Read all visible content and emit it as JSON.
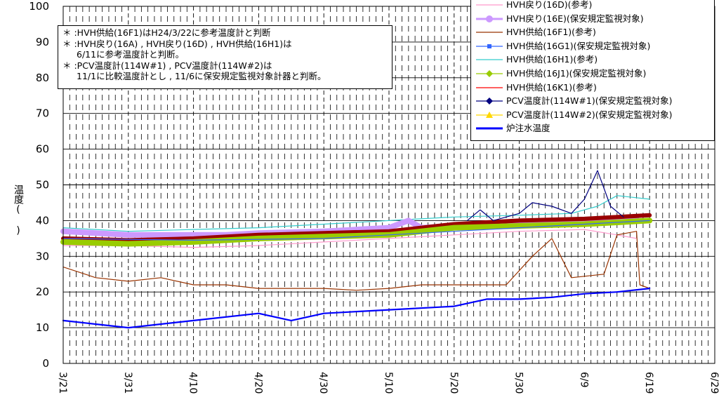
{
  "chart_data": {
    "type": "line",
    "ylabel": "温度(　)",
    "ylim": [
      0,
      100
    ],
    "y_ticks": [
      "0",
      "10",
      "20",
      "30",
      "40",
      "50",
      "60",
      "70",
      "80",
      "90",
      "100"
    ],
    "x_tick_labels": [
      "3/21",
      "3/31",
      "4/10",
      "4/20",
      "4/30",
      "5/10",
      "5/20",
      "5/30",
      "6/9",
      "6/19",
      "6/29"
    ],
    "xlim": [
      "3/21",
      "6/29"
    ],
    "grid": "dashed vertical daily, horizontal every 10",
    "legend_position": "top-right",
    "series": [
      {
        "name": "HVH戻り(16D)(参考)",
        "color": "#FF99CC",
        "points": [
          [
            0,
            33
          ],
          [
            10,
            33
          ],
          [
            20,
            32.5
          ],
          [
            30,
            33
          ],
          [
            40,
            34
          ],
          [
            50,
            35
          ],
          [
            60,
            36
          ],
          [
            70,
            37
          ],
          [
            80,
            37.5
          ],
          [
            85,
            36
          ],
          [
            88,
            35
          ]
        ]
      },
      {
        "name": "HVH戻り(16E)(保安規定監視対象)",
        "color": "#CC99FF",
        "points": [
          [
            0,
            37
          ],
          [
            10,
            36
          ],
          [
            20,
            36
          ],
          [
            25,
            36
          ],
          [
            30,
            36.5
          ],
          [
            40,
            37
          ],
          [
            50,
            38
          ],
          [
            53,
            40
          ],
          [
            55,
            38
          ],
          [
            60,
            38.5
          ],
          [
            70,
            39
          ],
          [
            80,
            40
          ],
          [
            88,
            41
          ]
        ]
      },
      {
        "name": "HVH供給(16F1)(参考)",
        "color": "#993300",
        "points": [
          [
            0,
            27
          ],
          [
            5,
            24
          ],
          [
            10,
            23
          ],
          [
            15,
            24
          ],
          [
            20,
            22
          ],
          [
            25,
            22
          ],
          [
            30,
            21
          ],
          [
            40,
            21
          ],
          [
            45,
            20.5
          ],
          [
            50,
            21
          ],
          [
            55,
            22
          ],
          [
            60,
            22
          ],
          [
            68,
            22
          ],
          [
            72,
            30
          ],
          [
            75,
            35
          ],
          [
            78,
            24
          ],
          [
            83,
            25
          ],
          [
            85,
            36
          ],
          [
            88,
            37
          ],
          [
            88.5,
            22
          ],
          [
            90,
            21
          ]
        ]
      },
      {
        "name": "HVH供給(16G1)(保安規定監視対象)",
        "color": "#3366FF",
        "points": [
          [
            0,
            35
          ],
          [
            20,
            34.5
          ],
          [
            40,
            35
          ],
          [
            60,
            37
          ],
          [
            70,
            38
          ],
          [
            80,
            39
          ],
          [
            90,
            40
          ]
        ]
      },
      {
        "name": "HVH供給(16H1)(参考)",
        "color": "#33CCCC",
        "points": [
          [
            0,
            38
          ],
          [
            10,
            37
          ],
          [
            20,
            37.5
          ],
          [
            30,
            38
          ],
          [
            40,
            39
          ],
          [
            50,
            40
          ],
          [
            60,
            41
          ],
          [
            70,
            41.5
          ],
          [
            78,
            42
          ],
          [
            82,
            44
          ],
          [
            85,
            47
          ],
          [
            90,
            46
          ]
        ]
      },
      {
        "name": "HVH供給(16J1)(保安規定監視対象)",
        "color": "#99CC00",
        "points": [
          [
            0,
            34
          ],
          [
            10,
            33.5
          ],
          [
            20,
            34
          ],
          [
            30,
            35
          ],
          [
            40,
            35.5
          ],
          [
            50,
            36
          ],
          [
            60,
            38
          ],
          [
            70,
            38.5
          ],
          [
            80,
            39
          ],
          [
            90,
            40
          ]
        ]
      },
      {
        "name": "HVH供給(16K1)(参考)",
        "color": "#990000",
        "points": [
          [
            0,
            35
          ],
          [
            10,
            34.5
          ],
          [
            20,
            35
          ],
          [
            30,
            36
          ],
          [
            40,
            36.5
          ],
          [
            50,
            37
          ],
          [
            60,
            39
          ],
          [
            70,
            40
          ],
          [
            80,
            40.5
          ],
          [
            90,
            41.5
          ]
        ]
      },
      {
        "name": "PCV温度計(114W#1)(保安規定監視対象)",
        "color": "#000080",
        "points": [
          [
            62,
            40
          ],
          [
            64,
            43
          ],
          [
            66,
            40
          ],
          [
            70,
            42
          ],
          [
            72,
            45
          ],
          [
            75,
            44
          ],
          [
            78,
            42
          ],
          [
            80,
            46
          ],
          [
            82,
            54
          ],
          [
            84,
            44
          ],
          [
            86,
            41
          ]
        ]
      },
      {
        "name": "PCV温度計(114W#2)(保安規定監視対象)",
        "color": "#FFFF00",
        "points": []
      },
      {
        "name": "炉注水温度",
        "color": "#0000FF",
        "points": [
          [
            0,
            12
          ],
          [
            10,
            10
          ],
          [
            20,
            12
          ],
          [
            30,
            14
          ],
          [
            35,
            12
          ],
          [
            40,
            14
          ],
          [
            50,
            15
          ],
          [
            60,
            16
          ],
          [
            65,
            18
          ],
          [
            70,
            18
          ],
          [
            75,
            18.5
          ],
          [
            80,
            19.5
          ],
          [
            85,
            20
          ],
          [
            90,
            21
          ]
        ]
      }
    ]
  },
  "notes": [
    "＊ :HVH供給(16F1)はH24/3/22に参考温度計と判断",
    "＊ :HVH戻り(16A) , HVH戻り(16D) , HVH供給(16H1)は",
    "6/11に参考温度計と判断。",
    "＊ :PCV温度計(114W#1) , PCV温度計(114W#2)は",
    "11/1に比較温度計とし , 11/6に保安規定監視対象計器と判断。"
  ],
  "legend": {
    "items": [
      {
        "label": "HVH戻り(16D)(参考)",
        "color": "#FF99CC",
        "marker": "none",
        "weight": "thin"
      },
      {
        "label": "HVH戻り(16E)(保安規定監視対象)",
        "color": "#CC99FF",
        "marker": "circle",
        "weight": "thick"
      },
      {
        "label": "HVH供給(16F1)(参考)",
        "color": "#993300",
        "marker": "none",
        "weight": "thin"
      },
      {
        "label": "HVH供給(16G1)(保安規定監視対象)",
        "color": "#3366FF",
        "marker": "square",
        "weight": "thin"
      },
      {
        "label": "HVH供給(16H1)(参考)",
        "color": "#33CCCC",
        "marker": "none",
        "weight": "thin"
      },
      {
        "label": "HVH供給(16J1)(保安規定監視対象)",
        "color": "#99CC00",
        "marker": "diamond",
        "weight": "thin"
      },
      {
        "label": "HVH供給(16K1)(参考)",
        "color": "#FF0000",
        "marker": "none",
        "weight": "thin"
      },
      {
        "label": "PCV温度計(114W#1)(保安規定監視対象)",
        "color": "#000080",
        "marker": "diamond",
        "weight": "thin"
      },
      {
        "label": "PCV温度計(114W#2)(保安規定監視対象)",
        "color": "#FFD700",
        "marker": "triangle",
        "weight": "thin"
      },
      {
        "label": "炉注水温度",
        "color": "#0000FF",
        "marker": "none",
        "weight": "thick"
      }
    ]
  }
}
